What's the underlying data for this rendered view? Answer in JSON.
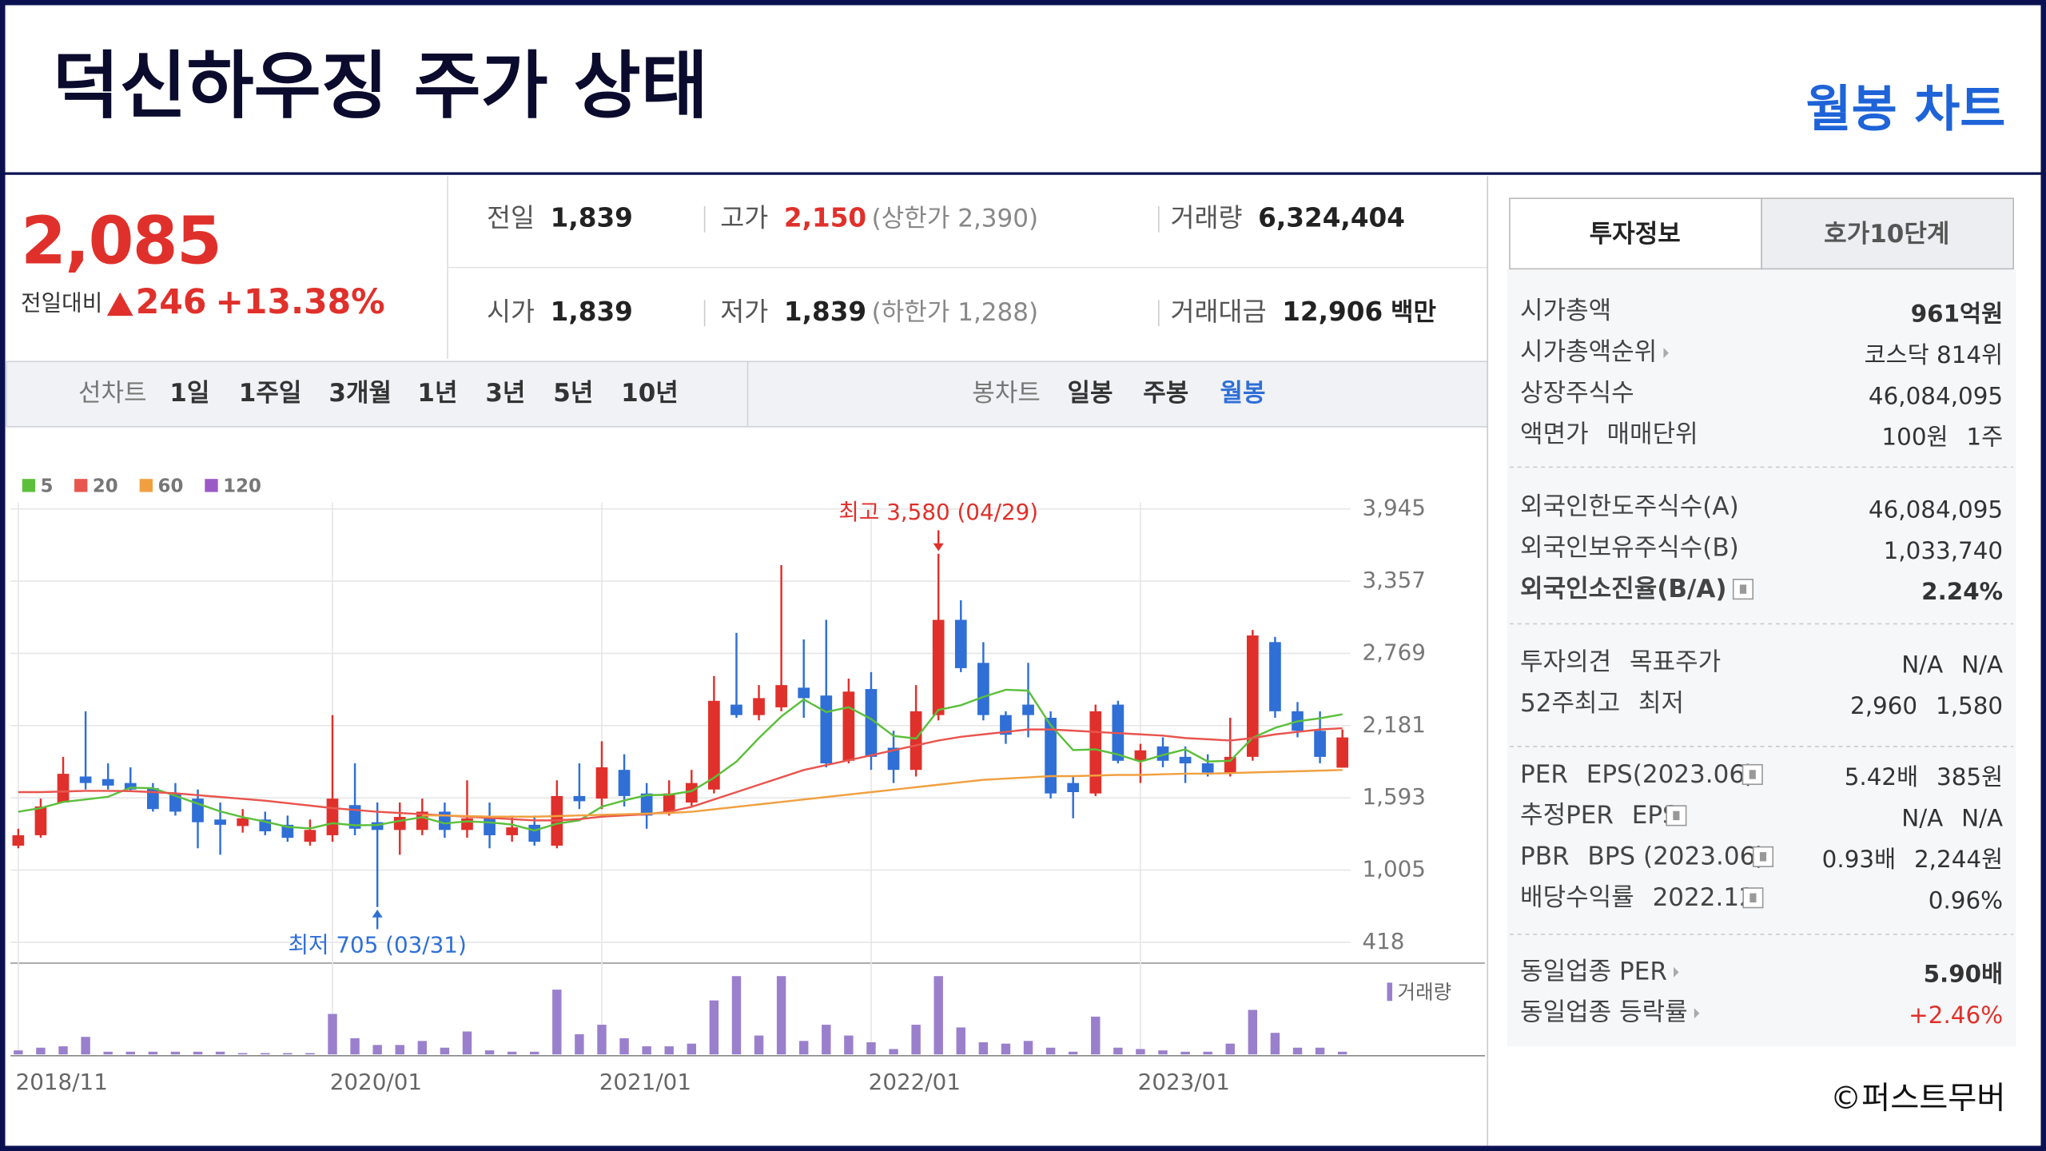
{
  "header": {
    "title": "덕신하우징 주가 상태",
    "subtitle": "월봉 차트"
  },
  "quote": {
    "price": "2,085",
    "change_label": "전일대비",
    "change": "246",
    "change_rate": "+13.38%",
    "details": [
      {
        "label": "전일",
        "value": "1,839"
      },
      {
        "label": "고가",
        "value": "2,150",
        "value_color": "#e0302b",
        "sub": "(상한가 2,390)"
      },
      {
        "label": "거래량",
        "value": "6,324,404"
      },
      {
        "label": "시가",
        "value": "1,839"
      },
      {
        "label": "저가",
        "value": "1,839",
        "sub": "(하한가 1,288)"
      },
      {
        "label": "거래대금",
        "value": "12,906",
        "unit": "백만"
      }
    ]
  },
  "period_tabs": {
    "line_label": "선차트",
    "line": [
      "1일",
      "1주일",
      "3개월",
      "1년",
      "3년",
      "5년",
      "10년"
    ],
    "candle_label": "봉차트",
    "candle": [
      "일봉",
      "주봉",
      "월봉"
    ],
    "active_candle": 2
  },
  "right_panel": {
    "tabs": [
      "투자정보",
      "호가10단계"
    ],
    "groups": [
      [
        {
          "label": [
            "시가총액"
          ],
          "value": [
            "961억원"
          ],
          "value_bold": true
        },
        {
          "label": [
            "시가총액순위"
          ],
          "value": [
            "코스닥 814위"
          ],
          "link": true
        },
        {
          "label": [
            "상장주식수"
          ],
          "value": [
            "46,084,095"
          ]
        },
        {
          "label": [
            "액면가",
            "매매단위"
          ],
          "value": [
            "100원",
            "1주"
          ]
        }
      ],
      [
        {
          "label": [
            "외국인한도주식수(A)"
          ],
          "value": [
            "46,084,095"
          ]
        },
        {
          "label": [
            "외국인보유주식수(B)"
          ],
          "value": [
            "1,033,740"
          ]
        },
        {
          "label": [
            "외국인소진율(B/A)"
          ],
          "value": [
            "2.24%"
          ],
          "bold": true,
          "value_bold": true,
          "help": true
        }
      ],
      [
        {
          "label": [
            "투자의견",
            "목표주가"
          ],
          "value": [
            "N/A",
            "N/A"
          ]
        },
        {
          "label": [
            "52주최고",
            "최저"
          ],
          "value": [
            "2,960",
            "1,580"
          ]
        }
      ],
      [
        {
          "label": [
            "PER",
            "EPS(2023.06)"
          ],
          "value": [
            "5.42배",
            "385원"
          ],
          "help": true
        },
        {
          "label": [
            "추정PER",
            "EPS"
          ],
          "value": [
            "N/A",
            "N/A"
          ],
          "help": true
        },
        {
          "label": [
            "PBR",
            "BPS (2023.06)"
          ],
          "value": [
            "0.93배",
            "2,244원"
          ],
          "help": true
        },
        {
          "label": [
            "배당수익률",
            "2022.12"
          ],
          "value": [
            "0.96%"
          ],
          "help": true
        }
      ],
      [
        {
          "label": [
            "동일업종 PER"
          ],
          "value": [
            "5.90배"
          ],
          "value_bold": true,
          "link": true
        },
        {
          "label": [
            "동일업종 등락률"
          ],
          "value": [
            "+2.46%"
          ],
          "link": true,
          "value_color": "#e0302b"
        }
      ]
    ]
  },
  "footer": "©퍼스트무버",
  "chart_data": {
    "type": "candlestick",
    "categories": [
      "2018/11",
      null,
      null,
      null,
      null,
      null,
      null,
      null,
      null,
      null,
      null,
      null,
      null,
      null,
      "2020/01",
      null,
      null,
      null,
      null,
      null,
      null,
      null,
      null,
      null,
      null,
      null,
      "2021/01",
      null,
      null,
      null,
      null,
      null,
      null,
      null,
      null,
      null,
      null,
      null,
      "2022/01",
      null,
      null,
      null,
      null,
      null,
      null,
      null,
      null,
      null,
      null,
      null,
      "2023/01",
      null,
      null,
      null,
      null,
      null,
      null,
      null,
      null,
      null
    ],
    "candles": {
      "open": [
        1204,
        1289,
        1555,
        1767,
        1746,
        1714,
        1672,
        1629,
        1587,
        1417,
        1364,
        1417,
        1374,
        1236,
        1289,
        1534,
        1395,
        1332,
        1332,
        1481,
        1332,
        1438,
        1289,
        1374,
        1204,
        1608,
        1587,
        1821,
        1629,
        1481,
        1555,
        1661,
        2352,
        2267,
        2330,
        2490,
        2426,
        1895,
        2479,
        2001,
        1821,
        2267,
        3042,
        2692,
        2267,
        2352,
        2245,
        1714,
        1629,
        2352,
        1895,
        2012,
        1927,
        1874,
        1799,
        1927,
        2861,
        2298,
        2139,
        1839
      ],
      "high": [
        1342,
        1587,
        1927,
        2298,
        1874,
        1842,
        1714,
        1714,
        1661,
        1555,
        1502,
        1481,
        1449,
        1417,
        2267,
        1874,
        1555,
        1555,
        1587,
        1555,
        1736,
        1555,
        1449,
        1449,
        1736,
        1874,
        2054,
        1948,
        1714,
        1736,
        1821,
        2585,
        2936,
        2511,
        3488,
        2883,
        3042,
        2564,
        2617,
        2139,
        2511,
        3580,
        3201,
        2861,
        2298,
        2692,
        2298,
        1767,
        2352,
        2383,
        2033,
        2086,
        2012,
        1948,
        2245,
        2960,
        2904,
        2373,
        2298,
        2150
      ],
      "low": [
        1183,
        1268,
        1555,
        1661,
        1661,
        1640,
        1481,
        1449,
        1183,
        1130,
        1310,
        1289,
        1236,
        1204,
        1236,
        1289,
        705,
        1130,
        1289,
        1268,
        1268,
        1183,
        1236,
        1204,
        1183,
        1502,
        1502,
        1523,
        1342,
        1449,
        1523,
        1629,
        2245,
        2224,
        2298,
        2245,
        1842,
        1874,
        1821,
        1714,
        1767,
        2224,
        2617,
        2224,
        2033,
        2086,
        1587,
        1427,
        1608,
        1874,
        1714,
        1842,
        1714,
        1767,
        1767,
        1895,
        2245,
        2086,
        1874,
        1839
      ],
      "close": [
        1289,
        1523,
        1789,
        1714,
        1693,
        1661,
        1502,
        1481,
        1395,
        1374,
        1427,
        1321,
        1268,
        1332,
        1587,
        1342,
        1332,
        1438,
        1481,
        1332,
        1427,
        1289,
        1353,
        1236,
        1608,
        1566,
        1842,
        1608,
        1449,
        1629,
        1714,
        2383,
        2267,
        2405,
        2511,
        2405,
        1874,
        2458,
        1927,
        1821,
        2298,
        3042,
        2649,
        2267,
        2107,
        2267,
        1629,
        1640,
        2298,
        1895,
        1980,
        1895,
        1874,
        1799,
        1927,
        2915,
        2298,
        2139,
        1927,
        2085
      ]
    },
    "up_color": "#e0302b",
    "down_color": "#2f6fd6",
    "series": [
      {
        "name": "5",
        "color": "#5cbf3c",
        "values": [
          1480,
          1510,
          1560,
          1580,
          1602,
          1676,
          1672,
          1610,
          1546,
          1483,
          1436,
          1400,
          1357,
          1344,
          1387,
          1370,
          1372,
          1406,
          1436,
          1385,
          1402,
          1393,
          1376,
          1327,
          1383,
          1410,
          1521,
          1572,
          1615,
          1619,
          1648,
          1757,
          1888,
          2080,
          2256,
          2394,
          2292,
          2331,
          2235,
          2097,
          2076,
          2309,
          2347,
          2415,
          2473,
          2466,
          2184,
          1982,
          1988,
          1946,
          1888,
          1942,
          1988,
          1889,
          1895,
          2082,
          2163,
          2216,
          2241,
          2273
        ]
      },
      {
        "name": "20",
        "color": "#e8554e",
        "values": [
          1640,
          1640,
          1645,
          1650,
          1650,
          1648,
          1640,
          1630,
          1615,
          1600,
          1585,
          1570,
          1550,
          1530,
          1510,
          1495,
          1480,
          1470,
          1460,
          1450,
          1440,
          1430,
          1420,
          1410,
          1410,
          1420,
          1440,
          1450,
          1460,
          1480,
          1520,
          1580,
          1640,
          1700,
          1760,
          1820,
          1860,
          1900,
          1940,
          1980,
          2020,
          2060,
          2090,
          2110,
          2130,
          2150,
          2150,
          2140,
          2130,
          2120,
          2110,
          2100,
          2080,
          2070,
          2060,
          2080,
          2110,
          2130,
          2150,
          2160
        ]
      },
      {
        "name": "60",
        "color": "#f0a040",
        "values": [
          null,
          null,
          null,
          null,
          null,
          null,
          null,
          null,
          null,
          null,
          null,
          null,
          null,
          null,
          null,
          null,
          null,
          null,
          1450,
          1450,
          1445,
          1440,
          1440,
          1440,
          1445,
          1450,
          1455,
          1460,
          1465,
          1470,
          1480,
          1500,
          1520,
          1540,
          1560,
          1580,
          1600,
          1620,
          1640,
          1660,
          1680,
          1700,
          1720,
          1740,
          1750,
          1760,
          1770,
          1770,
          1775,
          1780,
          1780,
          1785,
          1790,
          1790,
          1795,
          1800,
          1805,
          1810,
          1815,
          1820
        ]
      },
      {
        "name": "120",
        "color": "#9b59c6",
        "values": [
          null,
          null,
          null,
          null,
          null,
          null,
          null,
          null,
          null,
          null,
          null,
          null,
          null,
          null,
          null,
          null,
          null,
          null,
          null,
          null,
          null,
          null,
          null,
          null,
          null,
          null,
          null,
          null,
          null,
          null,
          null,
          null,
          null,
          null,
          null,
          null,
          null,
          null,
          null,
          null,
          null,
          null,
          null,
          null,
          null,
          null,
          null,
          null,
          null,
          null,
          null,
          null,
          null,
          null,
          null,
          null,
          null,
          null,
          null,
          null
        ]
      }
    ],
    "volume": {
      "name": "거래량",
      "color": "#9a80cc",
      "values": [
        3,
        5,
        6,
        13,
        2,
        2,
        2,
        2,
        2,
        2,
        1,
        1,
        1,
        1,
        30,
        12,
        7,
        7,
        10,
        5,
        17,
        3,
        2,
        2,
        48,
        15,
        22,
        12,
        6,
        6,
        8,
        40,
        58,
        14,
        58,
        10,
        22,
        14,
        9,
        4,
        22,
        58,
        20,
        9,
        8,
        10,
        5,
        2,
        28,
        5,
        4,
        3,
        2,
        2,
        8,
        33,
        16,
        5,
        5,
        2
      ]
    },
    "ylim": [
      259,
      4051
    ],
    "yticks": [
      {
        "value": 418,
        "label": "418"
      },
      {
        "value": 1005,
        "label": "1,005"
      },
      {
        "value": 1593,
        "label": "1,593"
      },
      {
        "value": 2181,
        "label": "2,181"
      },
      {
        "value": 2769,
        "label": "2,769"
      },
      {
        "value": 3357,
        "label": "3,357"
      },
      {
        "value": 3945,
        "label": "3,945"
      }
    ],
    "grid": true,
    "annotations": [
      {
        "text": "최고 3,580 (04/29)",
        "value": 3580,
        "kind": "high",
        "color": "#e0302b"
      },
      {
        "text": "최저 705 (03/31)",
        "value": 705,
        "kind": "low",
        "color": "#2f6fd6"
      }
    ]
  }
}
